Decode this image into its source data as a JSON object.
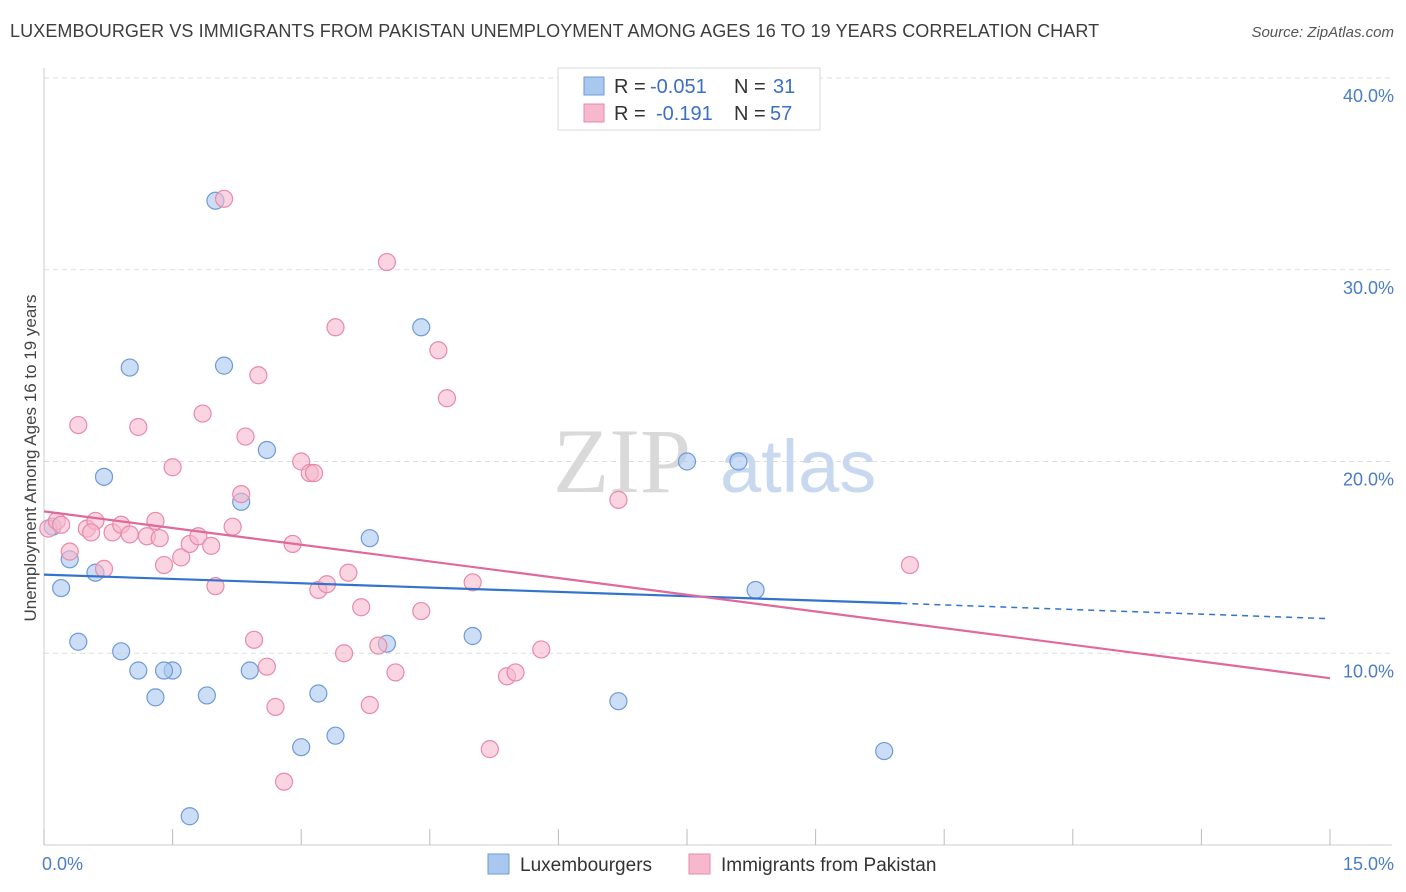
{
  "title": "LUXEMBOURGER VS IMMIGRANTS FROM PAKISTAN UNEMPLOYMENT AMONG AGES 16 TO 19 YEARS CORRELATION CHART",
  "source": "Source: ZipAtlas.com",
  "watermark": {
    "zip": "ZIP",
    "atlas": "atlas"
  },
  "colors": {
    "blue_fill": "#aac8ef",
    "blue_stroke": "#6e9ad8",
    "blue_line": "#3273cc",
    "pink_fill": "#f6b8cc",
    "pink_stroke": "#e88aa8",
    "pink_line": "#e0689a",
    "grid": "#dddddd",
    "tick_text": "#4a7cc7"
  },
  "legend": {
    "rows": [
      {
        "r_label": "R =",
        "r_value": "-0.051",
        "n_label": "N =",
        "n_value": "31"
      },
      {
        "r_label": "R =",
        "r_value": "-0.191",
        "n_label": "N =",
        "n_value": "57"
      }
    ]
  },
  "chart_data": {
    "type": "scatter",
    "ylabel": "Unemployment Among Ages 16 to 19 years",
    "xlim": [
      0,
      15
    ],
    "ylim": [
      0,
      40
    ],
    "x_tick_labels": [
      "0.0%",
      "15.0%"
    ],
    "y_ticks": [
      10,
      20,
      30,
      40
    ],
    "y_tick_labels": [
      "10.0%",
      "20.0%",
      "30.0%",
      "40.0%"
    ],
    "grid": true,
    "legend_position": "top-center",
    "series": [
      {
        "name": "Luxembourgers",
        "color": "blue",
        "trend": {
          "x0": 0,
          "y0": 14.1,
          "x1": 10.0,
          "y1": 12.6,
          "dash_to_x": 15,
          "dash_to_y": 11.8
        },
        "points": [
          [
            0.1,
            16.6
          ],
          [
            0.2,
            13.4
          ],
          [
            0.3,
            14.9
          ],
          [
            0.4,
            10.6
          ],
          [
            0.6,
            14.2
          ],
          [
            0.7,
            19.2
          ],
          [
            0.9,
            10.1
          ],
          [
            1.0,
            24.9
          ],
          [
            1.1,
            9.1
          ],
          [
            1.3,
            7.7
          ],
          [
            1.5,
            9.1
          ],
          [
            1.7,
            1.5
          ],
          [
            1.9,
            7.8
          ],
          [
            2.0,
            33.6
          ],
          [
            2.1,
            25.0
          ],
          [
            2.3,
            17.9
          ],
          [
            2.4,
            9.1
          ],
          [
            2.6,
            20.6
          ],
          [
            3.0,
            5.1
          ],
          [
            3.2,
            7.9
          ],
          [
            3.4,
            5.7
          ],
          [
            3.8,
            16.0
          ],
          [
            4.0,
            10.5
          ],
          [
            4.4,
            27.0
          ],
          [
            5.0,
            10.9
          ],
          [
            7.5,
            20.0
          ],
          [
            8.1,
            20.0
          ],
          [
            8.3,
            13.3
          ],
          [
            6.7,
            7.5
          ],
          [
            9.8,
            4.9
          ],
          [
            1.4,
            9.1
          ]
        ]
      },
      {
        "name": "Immigrants from Pakistan",
        "color": "pink",
        "trend": {
          "x0": 0,
          "y0": 17.4,
          "x1": 15,
          "y1": 8.7
        },
        "points": [
          [
            0.05,
            16.5
          ],
          [
            0.15,
            16.9
          ],
          [
            0.2,
            16.7
          ],
          [
            0.3,
            15.3
          ],
          [
            0.4,
            21.9
          ],
          [
            0.5,
            16.5
          ],
          [
            0.6,
            16.9
          ],
          [
            0.7,
            14.4
          ],
          [
            0.8,
            16.3
          ],
          [
            0.9,
            16.7
          ],
          [
            1.0,
            16.2
          ],
          [
            1.1,
            21.8
          ],
          [
            1.2,
            16.1
          ],
          [
            1.3,
            16.9
          ],
          [
            1.4,
            14.6
          ],
          [
            1.5,
            19.7
          ],
          [
            1.6,
            15.0
          ],
          [
            1.7,
            15.7
          ],
          [
            1.8,
            16.1
          ],
          [
            1.85,
            22.5
          ],
          [
            1.95,
            15.6
          ],
          [
            2.0,
            13.5
          ],
          [
            2.1,
            33.7
          ],
          [
            2.2,
            16.6
          ],
          [
            2.3,
            18.3
          ],
          [
            2.35,
            21.3
          ],
          [
            2.45,
            10.7
          ],
          [
            2.5,
            24.5
          ],
          [
            2.6,
            9.3
          ],
          [
            2.7,
            7.2
          ],
          [
            2.8,
            3.3
          ],
          [
            2.9,
            15.7
          ],
          [
            3.0,
            20.0
          ],
          [
            3.1,
            19.4
          ],
          [
            3.15,
            19.4
          ],
          [
            3.2,
            13.3
          ],
          [
            3.3,
            13.6
          ],
          [
            3.4,
            27.0
          ],
          [
            3.5,
            10.0
          ],
          [
            3.55,
            14.2
          ],
          [
            3.7,
            12.4
          ],
          [
            3.8,
            7.3
          ],
          [
            3.9,
            10.4
          ],
          [
            4.0,
            30.4
          ],
          [
            4.1,
            9.0
          ],
          [
            4.4,
            12.2
          ],
          [
            4.6,
            25.8
          ],
          [
            4.7,
            23.3
          ],
          [
            5.0,
            13.7
          ],
          [
            5.2,
            5.0
          ],
          [
            5.4,
            8.8
          ],
          [
            5.5,
            9.0
          ],
          [
            5.8,
            10.2
          ],
          [
            6.7,
            18.0
          ],
          [
            10.1,
            14.6
          ],
          [
            1.35,
            16.0
          ],
          [
            0.55,
            16.3
          ]
        ]
      }
    ]
  }
}
